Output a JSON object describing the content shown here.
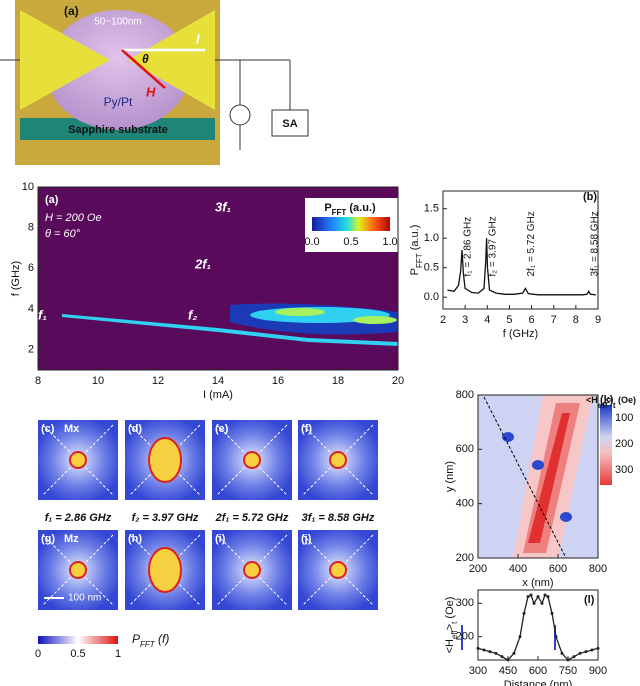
{
  "schematic": {
    "label": "(a)",
    "gap": "50~100nm",
    "current": "I",
    "angle": "θ",
    "field": "H",
    "film": "Py/Pt",
    "substrate": "Sapphire substrate",
    "analyzer": "SA"
  },
  "chart_data": [
    {
      "type": "heatmap",
      "panel": "(a)",
      "xlabel": "I (mA)",
      "ylabel": "f (GHz)",
      "xlim": [
        8,
        20
      ],
      "xticks": [
        8,
        10,
        12,
        14,
        16,
        18,
        20
      ],
      "ylim": [
        1,
        10
      ],
      "yticks": [
        2,
        4,
        6,
        8,
        10
      ],
      "annotations": [
        "H = 200 Oe",
        "θ = 60°"
      ],
      "peak_labels": [
        "3f₁",
        "2f₁",
        "f₁",
        "f₂"
      ],
      "colorbar": {
        "label": [
          "P",
          "FFT",
          " (a.u.)"
        ],
        "ticks": [
          {
            "value": 0,
            "label": "0.0"
          },
          0.5,
          {
            "value": 1,
            "label": "1.0"
          }
        ]
      }
    },
    {
      "type": "line",
      "panel": "(b)",
      "xlabel": "f (GHz)",
      "ylabel": [
        "P",
        "FFT",
        " (a.u.)"
      ],
      "xlim": [
        2,
        9
      ],
      "xticks": [
        2,
        3,
        4,
        5,
        6,
        7,
        8,
        9
      ],
      "ylim": [
        -0.2,
        1.8
      ],
      "yticks": [
        {
          "value": 0,
          "label": "0.0"
        },
        0.5,
        {
          "value": 1,
          "label": "1.0"
        },
        1.5
      ],
      "peak_labels": [
        "f₁ = 2.86 GHz",
        "f₂ = 3.97 GHz",
        "2f₁ = 5.72 GHz",
        "3f₁ = 8.58 GHz"
      ],
      "x": [
        2.2,
        2.5,
        2.7,
        2.8,
        2.86,
        2.92,
        3.0,
        3.3,
        3.6,
        3.85,
        3.93,
        3.97,
        4.01,
        4.1,
        4.4,
        4.8,
        5.2,
        5.6,
        5.72,
        5.85,
        6.3,
        6.8,
        7.3,
        7.8,
        8.3,
        8.5,
        8.58,
        8.66,
        8.9
      ],
      "series": [
        {
          "color": "#111111",
          "values": [
            0.12,
            0.1,
            0.2,
            0.45,
            0.8,
            0.4,
            0.15,
            0.08,
            0.07,
            0.15,
            0.6,
            1.0,
            0.5,
            0.12,
            0.07,
            0.05,
            0.05,
            0.07,
            0.15,
            0.06,
            0.04,
            0.04,
            0.04,
            0.04,
            0.04,
            0.05,
            0.1,
            0.05,
            0.04
          ]
        }
      ]
    },
    {
      "type": "contour",
      "panel": "(k)",
      "xlabel": "x (nm)",
      "ylabel": "y (nm)",
      "xlim": [
        200,
        800
      ],
      "xticks": [
        200,
        400,
        600,
        800
      ],
      "ylim": [
        200,
        800
      ],
      "yticks": [
        200,
        400,
        600,
        800
      ],
      "colorbar": {
        "label": [
          "<H",
          "eff",
          ">",
          "t",
          " (Oe)"
        ],
        "ticks": [
          100,
          200,
          300
        ]
      }
    },
    {
      "type": "line",
      "panel": "(l)",
      "xlabel": "Distance (nm)",
      "ylabel": [
        "<H",
        "eff",
        ">",
        "t",
        " (Oe)"
      ],
      "xlim": [
        300,
        900
      ],
      "xticks": [
        300,
        450,
        600,
        750,
        900
      ],
      "ylim": [
        130,
        340
      ],
      "yticks": [
        200,
        300
      ],
      "x": [
        300,
        330,
        360,
        390,
        420,
        450,
        480,
        510,
        530,
        550,
        565,
        580,
        600,
        620,
        635,
        650,
        670,
        690,
        720,
        750,
        780,
        810,
        840,
        870,
        900
      ],
      "series": [
        {
          "color": "#222222",
          "values": [
            165,
            160,
            155,
            150,
            140,
            130,
            150,
            200,
            270,
            320,
            325,
            300,
            320,
            300,
            325,
            320,
            270,
            200,
            150,
            130,
            140,
            150,
            155,
            160,
            165
          ]
        }
      ]
    }
  ],
  "snapshots": {
    "panels": [
      "(c)",
      "(d)",
      "(e)",
      "(f)",
      "(g)",
      "(h)",
      "(i)",
      "(j)"
    ],
    "components": [
      "Mx",
      "Mz"
    ],
    "frequencies": [
      "f₁ = 2.86 GHz",
      "f₂ = 3.97 GHz",
      "2f₁ = 5.72 GHz",
      "3f₁ = 8.58 GHz"
    ],
    "scale": "100 nm",
    "colorbar": {
      "ticks": [
        0,
        0.5,
        1
      ],
      "label": [
        "P",
        "FFT",
        " (f)"
      ]
    }
  }
}
